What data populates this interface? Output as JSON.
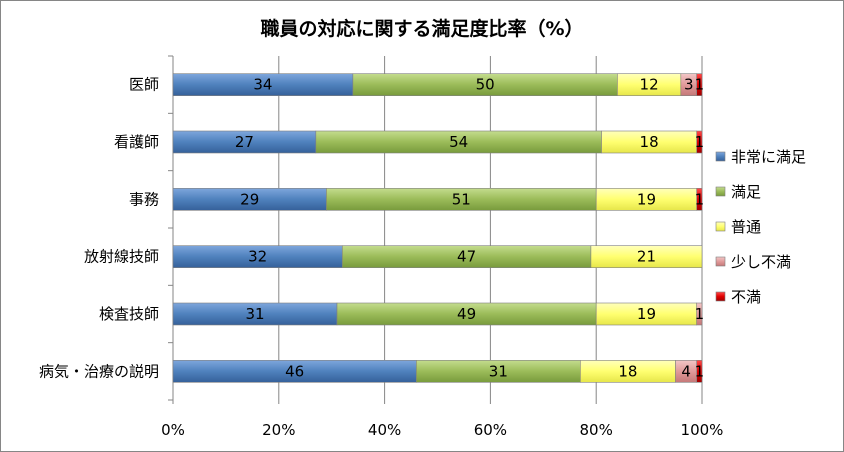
{
  "chart_data": {
    "type": "bar",
    "orientation": "horizontal",
    "stacked": "percent",
    "title": "職員の対応に関する満足度比率（%）",
    "categories": [
      "医師",
      "看護師",
      "事務",
      "放射線技師",
      "検査技師",
      "病気・治療の説明"
    ],
    "series": [
      {
        "name": "非常に満足",
        "color": "#4f81bd",
        "values": [
          34,
          27,
          29,
          32,
          31,
          46
        ]
      },
      {
        "name": "満足",
        "color": "#9bbb59",
        "values": [
          50,
          54,
          51,
          47,
          49,
          31
        ]
      },
      {
        "name": "普通",
        "color": "#ffff66",
        "values": [
          12,
          18,
          19,
          21,
          19,
          18
        ]
      },
      {
        "name": "少し不満",
        "color": "#e6a0a0",
        "values": [
          3,
          0,
          0,
          0,
          1,
          4
        ]
      },
      {
        "name": "不満",
        "color": "#e00000",
        "values": [
          1,
          1,
          1,
          0,
          0,
          1
        ]
      }
    ],
    "xlim": [
      0,
      100
    ],
    "xticks": [
      "0%",
      "20%",
      "40%",
      "60%",
      "80%",
      "100%"
    ],
    "grid": true,
    "legend": "right"
  }
}
